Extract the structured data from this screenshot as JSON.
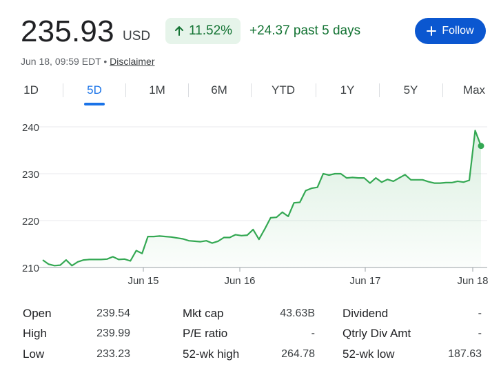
{
  "header": {
    "price": "235.93",
    "currency": "USD",
    "change_pct": "11.52%",
    "change_abs": "+24.37 past 5 days",
    "follow_label": "Follow",
    "arrow_icon": "arrow-up-icon",
    "plus_icon": "plus-icon",
    "accent_color": "#0b57d0",
    "positive_color": "#137333"
  },
  "meta": {
    "timestamp": "Jun 18, 09:59 EDT",
    "separator": "•",
    "disclaimer": "Disclaimer"
  },
  "tabs": [
    {
      "label": "1D",
      "active": false
    },
    {
      "label": "5D",
      "active": true
    },
    {
      "label": "1M",
      "active": false
    },
    {
      "label": "6M",
      "active": false
    },
    {
      "label": "YTD",
      "active": false
    },
    {
      "label": "1Y",
      "active": false
    },
    {
      "label": "5Y",
      "active": false
    },
    {
      "label": "Max",
      "active": false
    }
  ],
  "chart_data": {
    "type": "area",
    "title": "",
    "xlabel": "",
    "ylabel": "",
    "ylim": [
      210,
      240
    ],
    "yticks": [
      210,
      220,
      230,
      240
    ],
    "xticks": [
      "Jun 15",
      "Jun 16",
      "Jun 17",
      "Jun 18"
    ],
    "grid": true,
    "line_color": "#34a853",
    "series": [
      {
        "values": [
          211.6,
          210.7,
          210.4,
          210.5,
          211.6,
          210.4,
          211.2,
          211.6,
          211.7,
          211.7,
          211.7,
          211.8,
          212.3,
          211.7,
          211.8,
          211.4,
          213.6,
          213.0,
          216.6,
          216.6,
          216.7,
          216.6,
          216.5,
          216.3,
          216.1,
          215.7,
          215.6,
          215.5,
          215.7,
          215.2,
          215.6,
          216.4,
          216.4,
          217.0,
          216.8,
          216.9,
          218.1,
          216.0,
          218.2,
          220.6,
          220.7,
          221.8,
          220.9,
          223.8,
          223.9,
          226.4,
          226.9,
          227.1,
          230.0,
          229.7,
          230.0,
          230.0,
          229.1,
          229.2,
          229.1,
          229.1,
          228.0,
          229.1,
          228.2,
          228.8,
          228.4,
          229.1,
          229.8,
          228.7,
          228.7,
          228.7,
          228.3,
          228.0,
          228.0,
          228.1,
          228.1,
          228.4,
          228.2,
          228.6,
          239.2,
          235.93
        ]
      }
    ]
  },
  "stats": [
    {
      "label": "Open",
      "value": "239.54"
    },
    {
      "label": "High",
      "value": "239.99"
    },
    {
      "label": "Low",
      "value": "233.23"
    },
    {
      "label": "Mkt cap",
      "value": "43.63B"
    },
    {
      "label": "P/E ratio",
      "value": "-"
    },
    {
      "label": "52-wk high",
      "value": "264.78"
    },
    {
      "label": "Dividend",
      "value": "-"
    },
    {
      "label": "Qtrly Div Amt",
      "value": "-"
    },
    {
      "label": "52-wk low",
      "value": "187.63"
    }
  ]
}
